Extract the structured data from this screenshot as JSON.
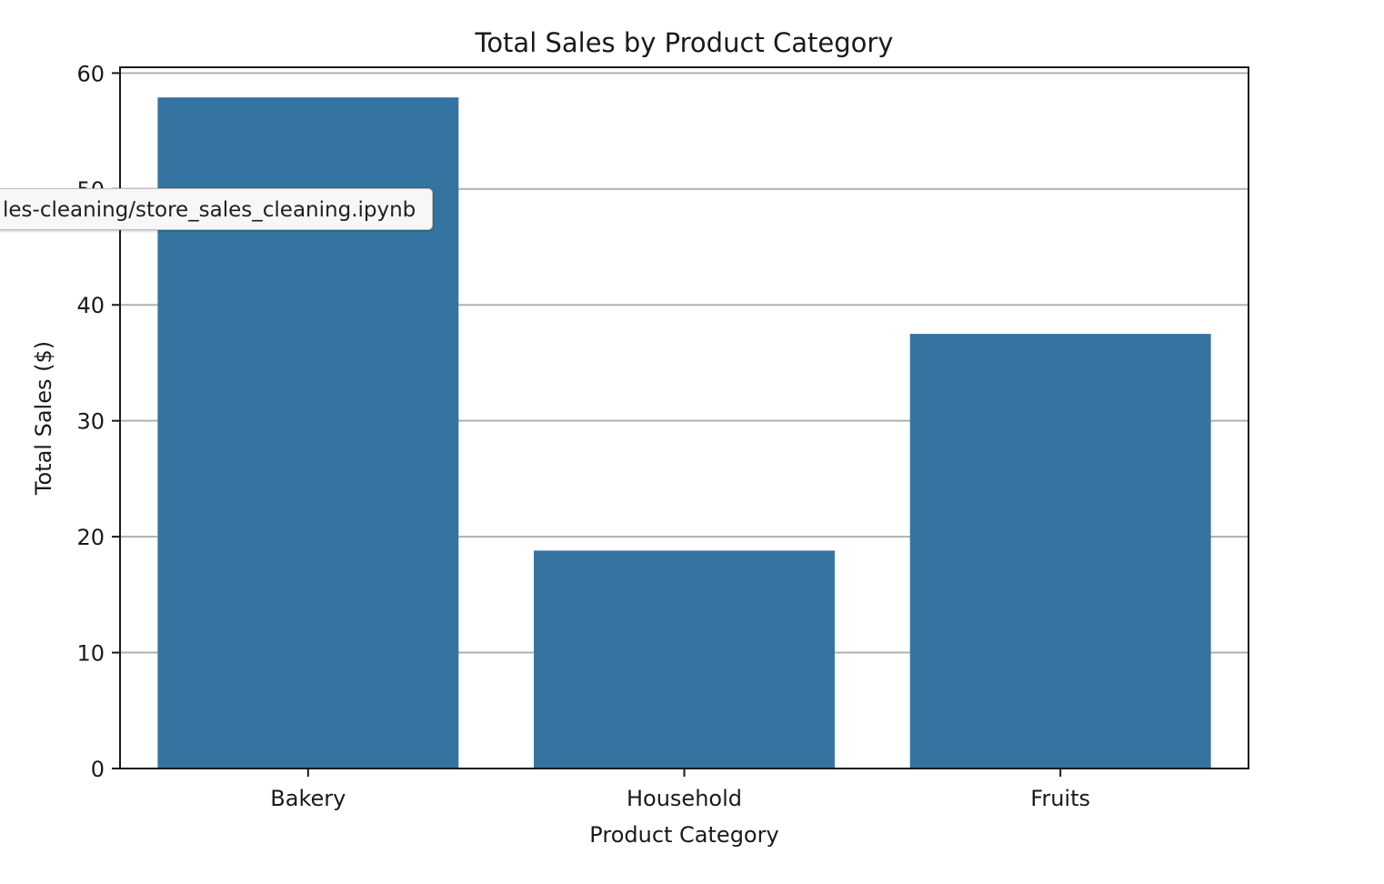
{
  "chart_data": {
    "type": "bar",
    "title": "Total Sales by Product Category",
    "xlabel": "Product Category",
    "ylabel": "Total Sales ($)",
    "categories": [
      "Bakery",
      "Household",
      "Fruits"
    ],
    "values": [
      57.9,
      18.8,
      37.5
    ],
    "ylim": [
      0,
      60.5
    ],
    "yticks": [
      0,
      10,
      20,
      30,
      40,
      50,
      60
    ],
    "grid": "y",
    "legend": "none",
    "bar_color": "#3574a0"
  },
  "tooltip": {
    "text": "les-cleaning/store_sales_cleaning.ipynb"
  }
}
